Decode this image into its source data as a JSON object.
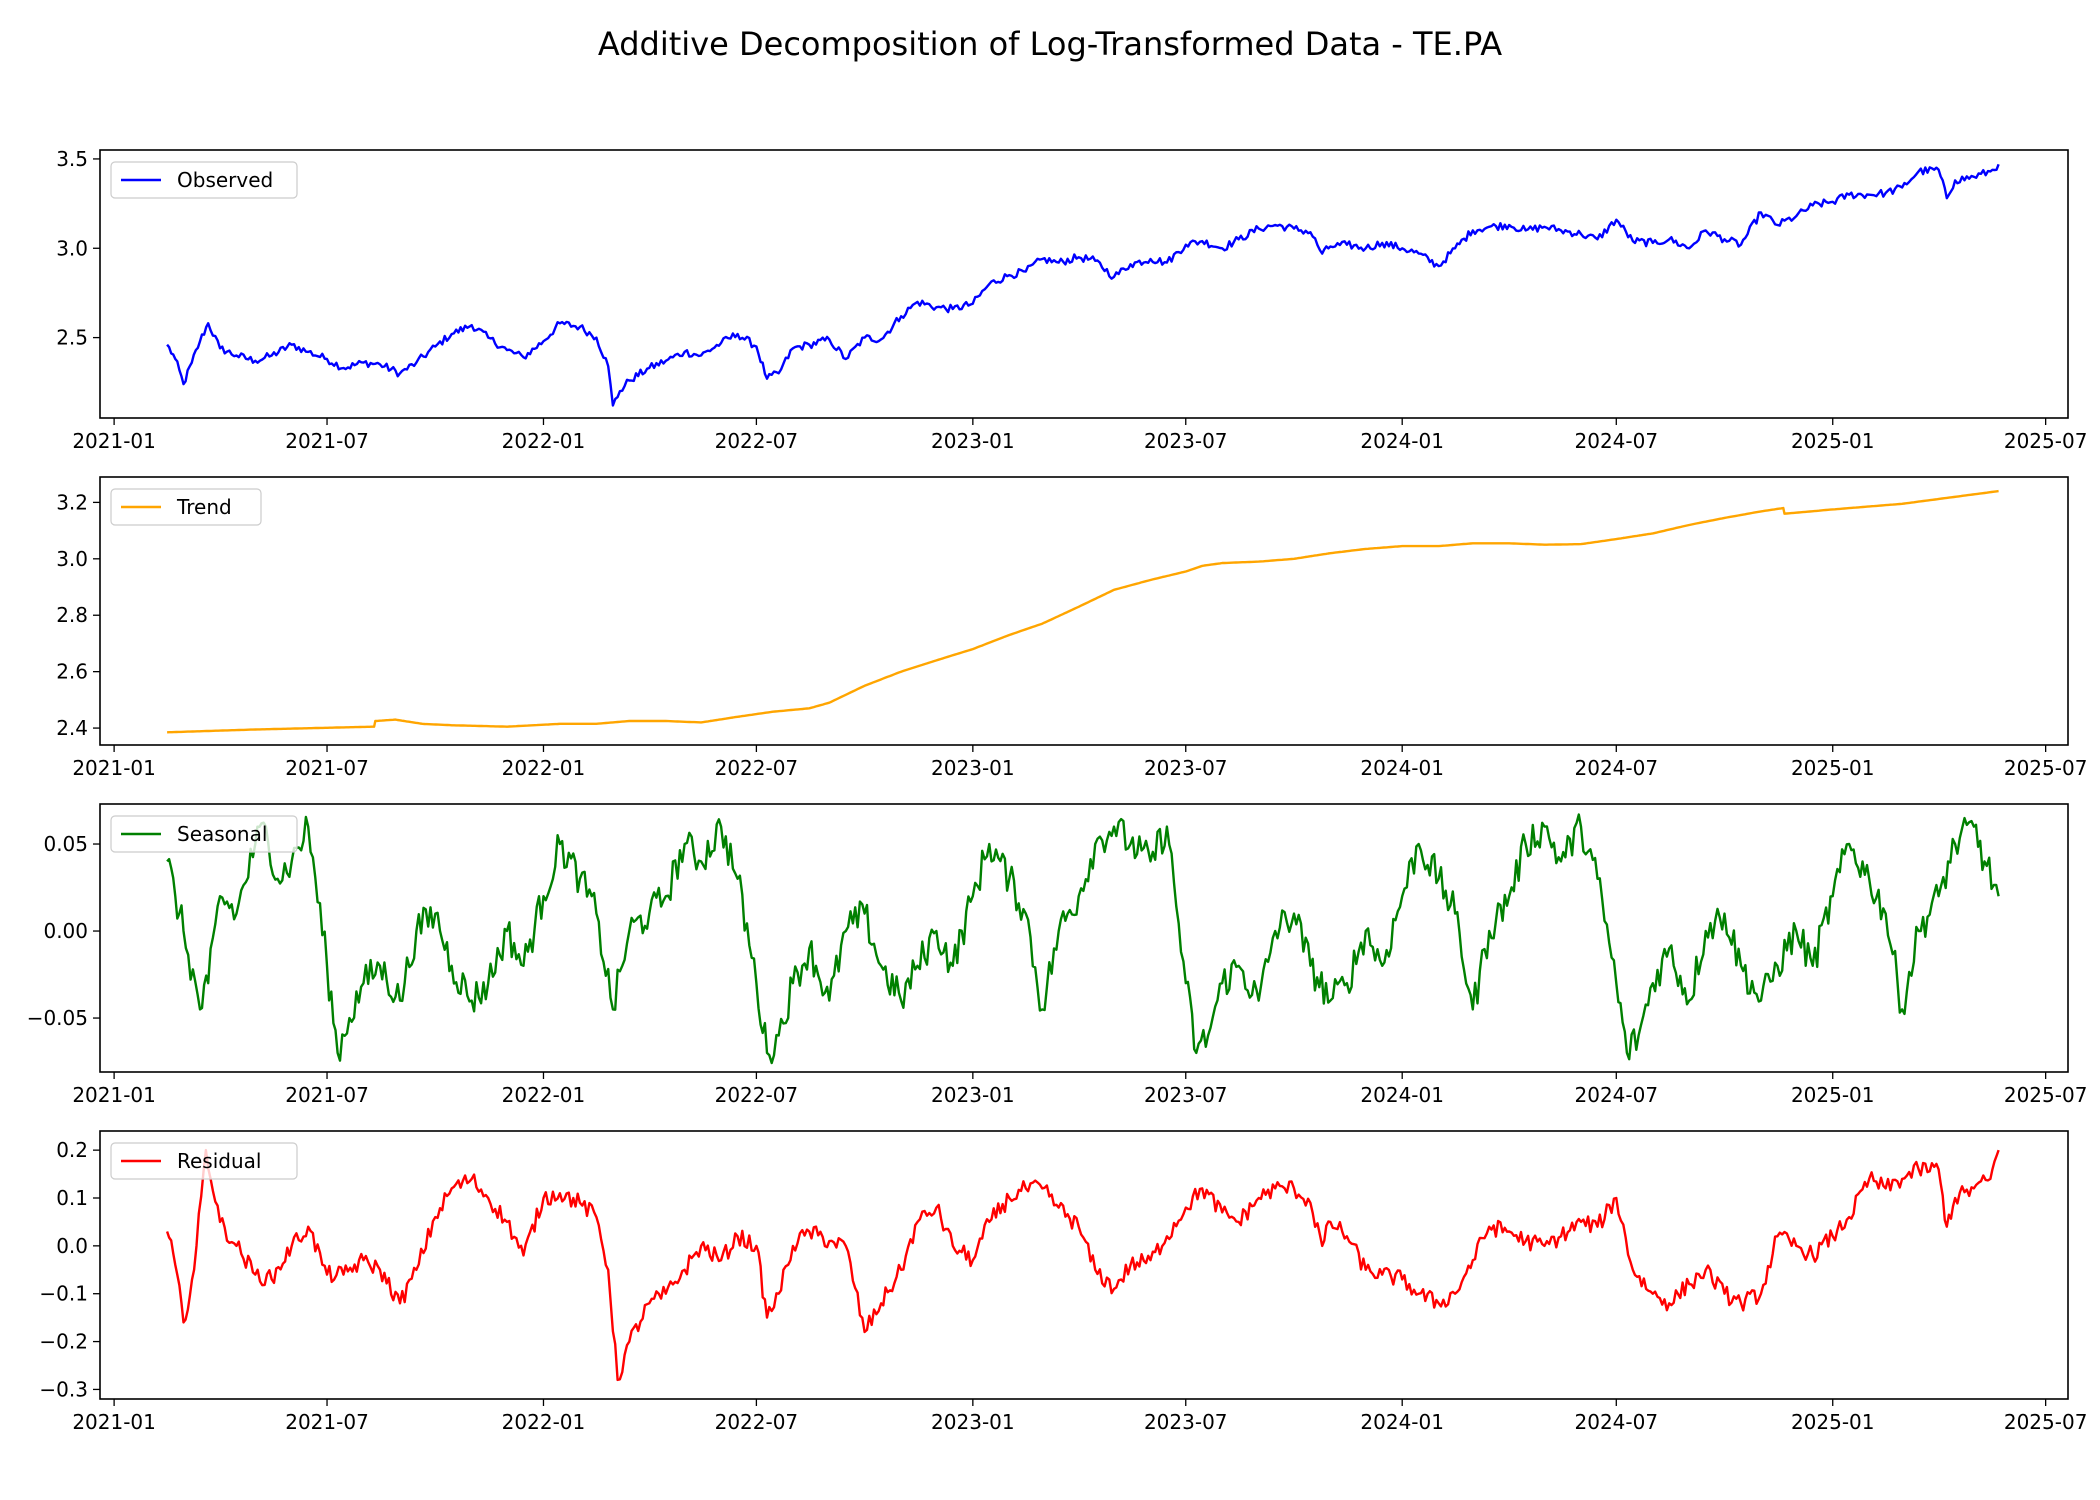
{
  "title": "Additive Decomposition of Log-Transformed Data - TE.PA",
  "x_tick_labels": [
    "2021-01",
    "2021-07",
    "2022-01",
    "2022-07",
    "2023-01",
    "2023-07",
    "2024-01",
    "2024-07",
    "2025-01",
    "2025-07"
  ],
  "chart_data": [
    {
      "type": "line",
      "name": "observed",
      "legend": "Observed",
      "color": "#0000ff",
      "x_range": [
        "2020-12-20",
        "2025-07-20"
      ],
      "ylim": [
        2.05,
        3.55
      ],
      "y_ticks": [
        2.5,
        3.0,
        3.5
      ],
      "y_tick_labels": [
        "2.5",
        "3.0",
        "3.5"
      ],
      "legend_position": "upper-left",
      "grid": false,
      "x": [
        "2021-02-15",
        "2021-02-22",
        "2021-03-01",
        "2021-03-08",
        "2021-03-15",
        "2021-03-22",
        "2021-04-01",
        "2021-04-15",
        "2021-05-01",
        "2021-05-15",
        "2021-06-01",
        "2021-06-15",
        "2021-07-01",
        "2021-07-15",
        "2021-08-01",
        "2021-08-15",
        "2021-09-01",
        "2021-09-15",
        "2021-10-01",
        "2021-10-15",
        "2021-11-01",
        "2021-11-15",
        "2021-12-01",
        "2021-12-15",
        "2022-01-01",
        "2022-01-15",
        "2022-02-01",
        "2022-02-15",
        "2022-02-25",
        "2022-03-01",
        "2022-03-07",
        "2022-03-15",
        "2022-04-01",
        "2022-04-15",
        "2022-05-01",
        "2022-05-15",
        "2022-06-01",
        "2022-06-15",
        "2022-07-01",
        "2022-07-10",
        "2022-07-20",
        "2022-08-01",
        "2022-08-15",
        "2022-09-01",
        "2022-09-15",
        "2022-10-01",
        "2022-10-15",
        "2022-11-01",
        "2022-11-15",
        "2022-12-01",
        "2022-12-15",
        "2023-01-01",
        "2023-01-15",
        "2023-02-01",
        "2023-02-15",
        "2023-03-01",
        "2023-03-15",
        "2023-04-01",
        "2023-04-15",
        "2023-05-01",
        "2023-05-15",
        "2023-06-01",
        "2023-06-15",
        "2023-07-01",
        "2023-07-15",
        "2023-08-01",
        "2023-08-15",
        "2023-09-01",
        "2023-09-15",
        "2023-10-01",
        "2023-10-15",
        "2023-10-25",
        "2023-11-01",
        "2023-11-15",
        "2023-12-01",
        "2023-12-15",
        "2024-01-01",
        "2024-01-15",
        "2024-02-01",
        "2024-02-15",
        "2024-03-01",
        "2024-03-15",
        "2024-04-01",
        "2024-04-15",
        "2024-05-01",
        "2024-05-15",
        "2024-06-01",
        "2024-06-15",
        "2024-07-01",
        "2024-07-15",
        "2024-08-01",
        "2024-08-15",
        "2024-09-01",
        "2024-09-15",
        "2024-10-01",
        "2024-10-15",
        "2024-11-01",
        "2024-11-15",
        "2024-12-01",
        "2024-12-15",
        "2025-01-01",
        "2025-01-15",
        "2025-02-01",
        "2025-02-15",
        "2025-03-01",
        "2025-03-15",
        "2025-04-01",
        "2025-04-08",
        "2025-04-15",
        "2025-05-01",
        "2025-05-15",
        "2025-05-22"
      ],
      "values": [
        2.46,
        2.38,
        2.24,
        2.36,
        2.48,
        2.58,
        2.44,
        2.4,
        2.37,
        2.4,
        2.46,
        2.42,
        2.38,
        2.33,
        2.36,
        2.35,
        2.3,
        2.36,
        2.45,
        2.52,
        2.57,
        2.5,
        2.43,
        2.39,
        2.48,
        2.58,
        2.56,
        2.5,
        2.34,
        2.12,
        2.2,
        2.26,
        2.33,
        2.37,
        2.42,
        2.4,
        2.47,
        2.52,
        2.45,
        2.27,
        2.3,
        2.44,
        2.46,
        2.49,
        2.38,
        2.5,
        2.49,
        2.62,
        2.7,
        2.67,
        2.66,
        2.69,
        2.8,
        2.85,
        2.87,
        2.94,
        2.92,
        2.95,
        2.93,
        2.84,
        2.91,
        2.94,
        2.92,
        3.02,
        3.04,
        3.0,
        3.05,
        3.11,
        3.13,
        3.11,
        3.09,
        2.97,
        3.01,
        3.02,
        3.0,
        3.03,
        3.0,
        2.97,
        2.9,
        3.0,
        3.1,
        3.12,
        3.13,
        3.1,
        3.12,
        3.1,
        3.08,
        3.05,
        3.16,
        3.04,
        3.03,
        3.05,
        3.0,
        3.1,
        3.05,
        3.02,
        3.2,
        3.13,
        3.18,
        3.24,
        3.26,
        3.3,
        3.3,
        3.31,
        3.34,
        3.43,
        3.44,
        3.28,
        3.38,
        3.4,
        3.43,
        3.47
      ]
    },
    {
      "type": "line",
      "name": "trend",
      "legend": "Trend",
      "color": "#ffa500",
      "x_range": [
        "2020-12-20",
        "2025-07-20"
      ],
      "ylim": [
        2.34,
        3.29
      ],
      "y_ticks": [
        2.4,
        2.6,
        2.8,
        3.0,
        3.2
      ],
      "y_tick_labels": [
        "2.4",
        "2.6",
        "2.8",
        "3.0",
        "3.2"
      ],
      "legend_position": "upper-left",
      "grid": false,
      "x": [
        "2021-02-15",
        "2021-05-01",
        "2021-08-10",
        "2021-08-11",
        "2021-08-28",
        "2021-09-20",
        "2021-10-15",
        "2021-12-01",
        "2022-01-15",
        "2022-02-15",
        "2022-03-15",
        "2022-04-15",
        "2022-05-15",
        "2022-06-15",
        "2022-07-15",
        "2022-08-15",
        "2022-09-01",
        "2022-10-01",
        "2022-11-01",
        "2022-12-01",
        "2023-01-01",
        "2023-02-01",
        "2023-03-01",
        "2023-04-01",
        "2023-05-01",
        "2023-06-01",
        "2023-07-01",
        "2023-07-15",
        "2023-08-01",
        "2023-09-01",
        "2023-10-01",
        "2023-11-01",
        "2023-12-01",
        "2024-01-01",
        "2024-02-01",
        "2024-03-01",
        "2024-04-01",
        "2024-05-01",
        "2024-06-01",
        "2024-07-01",
        "2024-08-01",
        "2024-09-01",
        "2024-10-01",
        "2024-11-01",
        "2024-11-20",
        "2024-11-21",
        "2025-01-01",
        "2025-03-01",
        "2025-05-22"
      ],
      "values": [
        2.385,
        2.395,
        2.405,
        2.425,
        2.43,
        2.415,
        2.41,
        2.405,
        2.415,
        2.415,
        2.425,
        2.425,
        2.42,
        2.44,
        2.458,
        2.47,
        2.49,
        2.55,
        2.6,
        2.64,
        2.68,
        2.73,
        2.77,
        2.83,
        2.89,
        2.925,
        2.955,
        2.975,
        2.985,
        2.99,
        3.0,
        3.02,
        3.035,
        3.045,
        3.045,
        3.055,
        3.055,
        3.05,
        3.052,
        3.07,
        3.09,
        3.12,
        3.145,
        3.168,
        3.18,
        3.16,
        3.175,
        3.195,
        3.24
      ]
    },
    {
      "type": "line",
      "name": "seasonal",
      "legend": "Seasonal",
      "color": "#008000",
      "x_range": [
        "2020-12-20",
        "2025-07-20"
      ],
      "ylim": [
        -0.081,
        0.073
      ],
      "y_ticks": [
        -0.05,
        0.0,
        0.05
      ],
      "y_tick_labels": [
        "−0.05",
        "0.00",
        "0.05"
      ],
      "legend_position": "upper-left",
      "grid": false,
      "x": [
        "2021-02-15",
        "2021-02-22",
        "2021-03-01",
        "2021-03-15",
        "2021-03-22",
        "2021-04-01",
        "2021-04-15",
        "2021-05-01",
        "2021-05-10",
        "2021-05-20",
        "2021-06-01",
        "2021-06-15",
        "2021-07-01",
        "2021-07-10",
        "2021-07-20",
        "2021-08-01",
        "2021-08-15",
        "2021-09-01",
        "2021-09-15",
        "2021-10-01",
        "2021-10-15",
        "2021-11-01",
        "2021-11-15",
        "2021-12-01",
        "2021-12-15",
        "2022-01-01",
        "2022-01-15",
        "2022-02-01",
        "2022-02-15",
        "2022-03-01",
        "2022-03-15",
        "2022-04-01",
        "2022-04-15",
        "2022-05-01",
        "2022-05-15",
        "2022-06-01",
        "2022-06-15",
        "2022-07-01",
        "2022-07-10",
        "2022-07-20",
        "2022-08-01",
        "2022-08-15",
        "2022-09-01",
        "2022-09-15",
        "2022-10-01",
        "2022-10-15",
        "2022-11-01",
        "2022-11-15",
        "2022-12-01",
        "2022-12-15",
        "2023-01-01",
        "2023-01-15",
        "2023-02-01",
        "2023-02-15",
        "2023-03-01",
        "2023-03-15",
        "2023-04-01",
        "2023-04-15",
        "2023-05-01",
        "2023-05-15",
        "2023-06-01",
        "2023-06-15",
        "2023-07-01",
        "2023-07-10",
        "2023-07-20",
        "2023-08-01",
        "2023-08-15",
        "2023-09-01",
        "2023-09-15",
        "2023-10-01",
        "2023-10-15",
        "2023-11-01",
        "2023-11-15",
        "2023-12-01",
        "2023-12-15",
        "2024-01-01",
        "2024-01-15",
        "2024-02-01",
        "2024-02-15",
        "2024-03-01",
        "2024-03-15",
        "2024-04-01",
        "2024-04-15",
        "2024-05-01",
        "2024-05-15",
        "2024-06-01",
        "2024-06-15",
        "2024-07-01",
        "2024-07-10",
        "2024-07-20",
        "2024-08-01",
        "2024-08-15",
        "2024-09-01",
        "2024-09-15",
        "2024-10-01",
        "2024-10-15",
        "2024-11-01",
        "2024-11-15",
        "2024-12-01",
        "2024-12-15",
        "2025-01-01",
        "2025-01-15",
        "2025-02-01",
        "2025-02-15",
        "2025-03-01",
        "2025-03-15",
        "2025-04-01",
        "2025-04-15",
        "2025-05-01",
        "2025-05-10",
        "2025-05-22"
      ],
      "values": [
        0.04,
        0.02,
        0.0,
        -0.045,
        -0.03,
        0.02,
        0.01,
        0.05,
        0.06,
        0.03,
        0.04,
        0.06,
        -0.02,
        -0.07,
        -0.05,
        -0.03,
        -0.02,
        -0.04,
        0.0,
        0.01,
        -0.02,
        -0.04,
        -0.03,
        0.0,
        -0.02,
        0.02,
        0.05,
        0.03,
        0.01,
        -0.045,
        0.0,
        0.01,
        0.02,
        0.05,
        0.04,
        0.06,
        0.03,
        -0.03,
        -0.07,
        -0.06,
        -0.03,
        -0.01,
        -0.04,
        0.0,
        0.01,
        -0.02,
        -0.04,
        -0.02,
        0.0,
        -0.02,
        0.02,
        0.05,
        0.03,
        0.01,
        -0.045,
        0.0,
        0.02,
        0.05,
        0.06,
        0.05,
        0.04,
        0.06,
        -0.03,
        -0.07,
        -0.06,
        -0.03,
        -0.02,
        -0.04,
        0.0,
        0.01,
        -0.02,
        -0.04,
        -0.03,
        0.0,
        -0.02,
        0.02,
        0.05,
        0.03,
        0.01,
        -0.045,
        0.0,
        0.02,
        0.05,
        0.06,
        0.04,
        0.06,
        0.03,
        -0.03,
        -0.07,
        -0.06,
        -0.03,
        -0.01,
        -0.04,
        0.0,
        0.01,
        -0.02,
        -0.04,
        -0.02,
        0.0,
        -0.02,
        0.02,
        0.05,
        0.03,
        0.01,
        -0.045,
        0.0,
        0.02,
        0.05,
        0.06,
        0.04,
        0.02
      ]
    },
    {
      "type": "line",
      "name": "residual",
      "legend": "Residual",
      "color": "#ff0000",
      "x_range": [
        "2020-12-20",
        "2025-07-20"
      ],
      "ylim": [
        -0.32,
        0.24
      ],
      "y_ticks": [
        -0.3,
        -0.2,
        -0.1,
        0.0,
        0.1,
        0.2
      ],
      "y_tick_labels": [
        "−0.3",
        "−0.2",
        "−0.1",
        "0.0",
        "0.1",
        "0.2"
      ],
      "legend_position": "upper-left",
      "grid": false,
      "x": [
        "2021-02-15",
        "2021-02-22",
        "2021-03-01",
        "2021-03-10",
        "2021-03-20",
        "2021-04-01",
        "2021-04-15",
        "2021-05-01",
        "2021-05-15",
        "2021-06-01",
        "2021-06-15",
        "2021-07-01",
        "2021-07-15",
        "2021-08-01",
        "2021-08-15",
        "2021-09-01",
        "2021-09-15",
        "2021-10-01",
        "2021-10-15",
        "2021-11-01",
        "2021-11-15",
        "2021-12-01",
        "2021-12-15",
        "2022-01-01",
        "2022-01-15",
        "2022-02-01",
        "2022-02-15",
        "2022-02-25",
        "2022-03-05",
        "2022-03-15",
        "2022-04-01",
        "2022-04-15",
        "2022-05-01",
        "2022-05-15",
        "2022-06-01",
        "2022-06-15",
        "2022-07-01",
        "2022-07-10",
        "2022-07-20",
        "2022-08-01",
        "2022-08-15",
        "2022-09-01",
        "2022-09-15",
        "2022-10-01",
        "2022-10-15",
        "2022-11-01",
        "2022-11-15",
        "2022-12-01",
        "2022-12-15",
        "2023-01-01",
        "2023-01-15",
        "2023-02-01",
        "2023-02-15",
        "2023-03-01",
        "2023-03-15",
        "2023-04-01",
        "2023-04-15",
        "2023-05-01",
        "2023-05-15",
        "2023-06-01",
        "2023-06-15",
        "2023-07-01",
        "2023-07-15",
        "2023-08-01",
        "2023-08-15",
        "2023-09-01",
        "2023-09-15",
        "2023-10-01",
        "2023-10-15",
        "2023-10-25",
        "2023-11-01",
        "2023-11-15",
        "2023-12-01",
        "2023-12-15",
        "2024-01-01",
        "2024-01-15",
        "2024-02-01",
        "2024-02-15",
        "2024-03-01",
        "2024-03-15",
        "2024-04-01",
        "2024-04-15",
        "2024-05-01",
        "2024-05-15",
        "2024-06-01",
        "2024-06-15",
        "2024-07-01",
        "2024-07-15",
        "2024-08-01",
        "2024-08-15",
        "2024-09-01",
        "2024-09-15",
        "2024-10-01",
        "2024-10-15",
        "2024-11-01",
        "2024-11-15",
        "2024-12-01",
        "2024-12-15",
        "2025-01-01",
        "2025-01-15",
        "2025-02-01",
        "2025-02-15",
        "2025-03-01",
        "2025-03-15",
        "2025-04-01",
        "2025-04-08",
        "2025-04-15",
        "2025-05-01",
        "2025-05-15",
        "2025-05-22"
      ],
      "values": [
        0.03,
        -0.04,
        -0.16,
        -0.05,
        0.2,
        0.05,
        0.0,
        -0.06,
        -0.07,
        0.0,
        0.04,
        -0.06,
        -0.06,
        -0.03,
        -0.05,
        -0.12,
        -0.05,
        0.06,
        0.12,
        0.14,
        0.1,
        0.05,
        -0.02,
        0.1,
        0.11,
        0.09,
        0.06,
        -0.05,
        -0.28,
        -0.2,
        -0.12,
        -0.1,
        -0.05,
        0.0,
        -0.03,
        0.02,
        0.0,
        -0.15,
        -0.1,
        0.0,
        0.03,
        0.01,
        0.0,
        -0.18,
        -0.12,
        -0.05,
        0.05,
        0.08,
        0.0,
        -0.03,
        0.05,
        0.1,
        0.12,
        0.12,
        0.08,
        0.04,
        -0.05,
        -0.09,
        -0.04,
        -0.03,
        0.02,
        0.08,
        0.12,
        0.07,
        0.05,
        0.1,
        0.12,
        0.12,
        0.09,
        0.0,
        0.05,
        0.02,
        -0.05,
        -0.06,
        -0.07,
        -0.1,
        -0.12,
        -0.1,
        -0.03,
        0.04,
        0.03,
        0.01,
        0.0,
        0.02,
        0.05,
        0.04,
        0.1,
        -0.05,
        -0.1,
        -0.12,
        -0.08,
        -0.05,
        -0.1,
        -0.12,
        -0.1,
        0.02,
        0.0,
        -0.02,
        0.02,
        0.06,
        0.14,
        0.12,
        0.14,
        0.16,
        0.16,
        0.04,
        0.1,
        0.12,
        0.14,
        0.2
      ]
    }
  ]
}
